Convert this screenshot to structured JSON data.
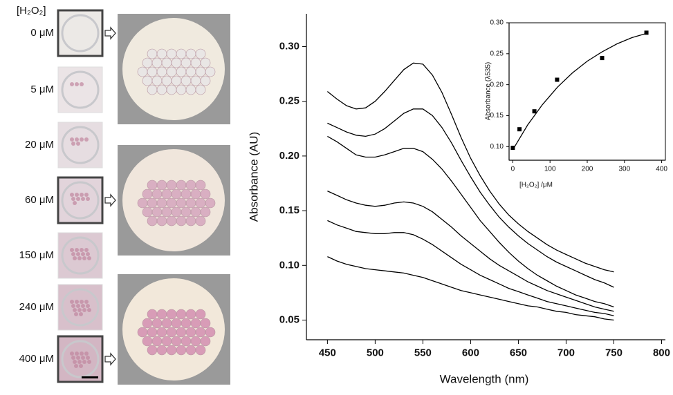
{
  "photos": {
    "header": "[H₂O₂]",
    "labels": [
      "0  μM",
      "5  μM",
      "20 μM",
      "60 μM",
      "150 μM",
      "240 μM",
      "400 μM"
    ]
  },
  "chart_data": [
    {
      "type": "line",
      "x_label": "Wavelength (nm)",
      "y_label": "Absorbance (AU)",
      "x": [
        450,
        460,
        470,
        480,
        490,
        500,
        510,
        520,
        530,
        540,
        550,
        560,
        570,
        580,
        590,
        600,
        610,
        620,
        630,
        640,
        650,
        660,
        670,
        680,
        690,
        700,
        710,
        720,
        730,
        740,
        750
      ],
      "series": [
        {
          "color": "#000000",
          "values": [
            0.259,
            0.252,
            0.246,
            0.243,
            0.244,
            0.25,
            0.259,
            0.269,
            0.279,
            0.285,
            0.284,
            0.274,
            0.258,
            0.238,
            0.217,
            0.198,
            0.182,
            0.168,
            0.156,
            0.146,
            0.138,
            0.131,
            0.125,
            0.119,
            0.114,
            0.11,
            0.106,
            0.102,
            0.099,
            0.096,
            0.094
          ]
        },
        {
          "color": "#000000",
          "values": [
            0.23,
            0.226,
            0.222,
            0.219,
            0.218,
            0.22,
            0.225,
            0.232,
            0.239,
            0.243,
            0.243,
            0.237,
            0.226,
            0.212,
            0.196,
            0.181,
            0.167,
            0.155,
            0.144,
            0.135,
            0.127,
            0.12,
            0.114,
            0.108,
            0.103,
            0.099,
            0.095,
            0.091,
            0.087,
            0.084,
            0.08
          ]
        },
        {
          "color": "#000000",
          "values": [
            0.218,
            0.213,
            0.207,
            0.201,
            0.199,
            0.199,
            0.201,
            0.204,
            0.207,
            0.207,
            0.204,
            0.197,
            0.188,
            0.177,
            0.165,
            0.153,
            0.141,
            0.131,
            0.121,
            0.112,
            0.104,
            0.097,
            0.091,
            0.086,
            0.081,
            0.077,
            0.073,
            0.07,
            0.067,
            0.065,
            0.062
          ]
        },
        {
          "color": "#000000",
          "values": [
            0.168,
            0.164,
            0.16,
            0.157,
            0.155,
            0.154,
            0.155,
            0.157,
            0.158,
            0.157,
            0.154,
            0.149,
            0.142,
            0.135,
            0.127,
            0.12,
            0.113,
            0.106,
            0.1,
            0.095,
            0.09,
            0.085,
            0.081,
            0.077,
            0.074,
            0.071,
            0.068,
            0.065,
            0.062,
            0.06,
            0.058
          ]
        },
        {
          "color": "#000000",
          "values": [
            0.141,
            0.137,
            0.134,
            0.131,
            0.13,
            0.129,
            0.129,
            0.13,
            0.13,
            0.128,
            0.124,
            0.119,
            0.113,
            0.107,
            0.101,
            0.096,
            0.091,
            0.087,
            0.083,
            0.079,
            0.076,
            0.073,
            0.07,
            0.067,
            0.065,
            0.063,
            0.061,
            0.059,
            0.057,
            0.056,
            0.054
          ]
        },
        {
          "color": "#000000",
          "values": [
            0.108,
            0.104,
            0.101,
            0.099,
            0.097,
            0.096,
            0.095,
            0.094,
            0.093,
            0.091,
            0.089,
            0.086,
            0.083,
            0.08,
            0.077,
            0.075,
            0.073,
            0.071,
            0.069,
            0.067,
            0.065,
            0.063,
            0.062,
            0.06,
            0.058,
            0.057,
            0.055,
            0.054,
            0.053,
            0.051,
            0.05
          ]
        }
      ],
      "xlim": [
        428,
        804
      ],
      "xticks": [
        450,
        500,
        550,
        600,
        650,
        700,
        750,
        800
      ],
      "ylim": [
        0.032,
        0.33
      ],
      "yticks": [
        0.05,
        {
          "value": 0.1,
          "label": "0.10"
        },
        0.15,
        {
          "value": 0.2,
          "label": "0.20"
        },
        0.25,
        {
          "value": 0.3,
          "label": "0.30"
        }
      ]
    },
    {
      "type": "scatter",
      "x_label": "[H₂O₂]  /μM",
      "y_label": "Absorbance (λ535)",
      "series": [
        {
          "type": "scatter",
          "color": "#000000",
          "x": [
            0,
            18,
            58,
            119,
            240,
            359
          ],
          "values": [
            0.098,
            0.128,
            0.157,
            0.208,
            0.243,
            0.284
          ]
        },
        {
          "type": "line",
          "color": "#000000",
          "x": [
            0,
            40,
            80,
            120,
            160,
            200,
            240,
            280,
            320,
            360
          ],
          "values": [
            0.095,
            0.135,
            0.168,
            0.196,
            0.219,
            0.238,
            0.253,
            0.266,
            0.276,
            0.283
          ]
        }
      ],
      "xlim": [
        -10,
        410
      ],
      "xticks": [
        0,
        100,
        200,
        300,
        400
      ],
      "ylim": [
        0.078,
        0.3
      ],
      "yticks": [
        {
          "value": 0.1,
          "label": "0.10"
        },
        0.15,
        {
          "value": 0.2,
          "label": "0.20"
        },
        0.25,
        {
          "value": 0.3,
          "label": "0.30"
        }
      ]
    }
  ]
}
